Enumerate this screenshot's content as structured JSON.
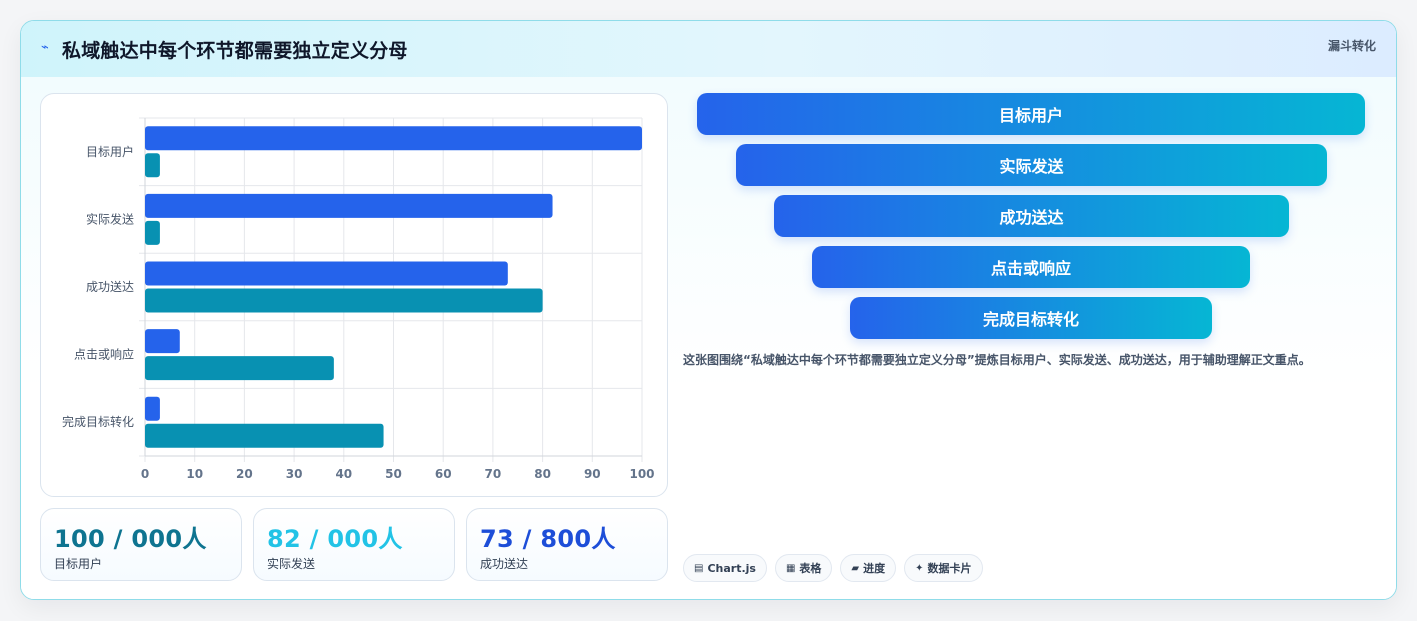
{
  "header": {
    "title": "私域触达中每个环节都需要独立定义分母",
    "tag": "漏斗转化"
  },
  "chart_data": {
    "type": "bar",
    "orientation": "horizontal",
    "categories": [
      "目标用户",
      "实际发送",
      "成功送达",
      "点击或响应",
      "完成目标转化"
    ],
    "series": [
      {
        "values": [
          100,
          82,
          73,
          7,
          3
        ],
        "color": "#2563eb"
      },
      {
        "values": [
          3,
          3,
          80,
          38,
          48
        ],
        "color": "#0891b2"
      }
    ],
    "xlim": [
      0,
      100
    ],
    "xticks": [
      0,
      10,
      20,
      30,
      40,
      50,
      60,
      70,
      80,
      90,
      100
    ],
    "grid": true,
    "legend": "none"
  },
  "stats": [
    {
      "value": "100 / 000人",
      "label": "目标用户",
      "color": "#0e7490"
    },
    {
      "value": "82 / 000人",
      "label": "实际发送",
      "color": "#22c3e6"
    },
    {
      "value": "73 / 800人",
      "label": "成功送达",
      "color": "#1d4ed8"
    }
  ],
  "funnel": [
    "目标用户",
    "实际发送",
    "成功送达",
    "点击或响应",
    "完成目标转化"
  ],
  "description": "这张图围绕“私域触达中每个环节都需要独立定义分母”提炼目标用户、实际发送、成功送达，用于辅助理解正文重点。",
  "chips": [
    {
      "icon": "chart-icon",
      "glyph": "▤",
      "label": "Chart.js"
    },
    {
      "icon": "table-icon",
      "glyph": "▦",
      "label": "表格"
    },
    {
      "icon": "progress-icon",
      "glyph": "▰",
      "label": "进度"
    },
    {
      "icon": "sparkle-icon",
      "glyph": "✦",
      "label": "数据卡片"
    }
  ]
}
